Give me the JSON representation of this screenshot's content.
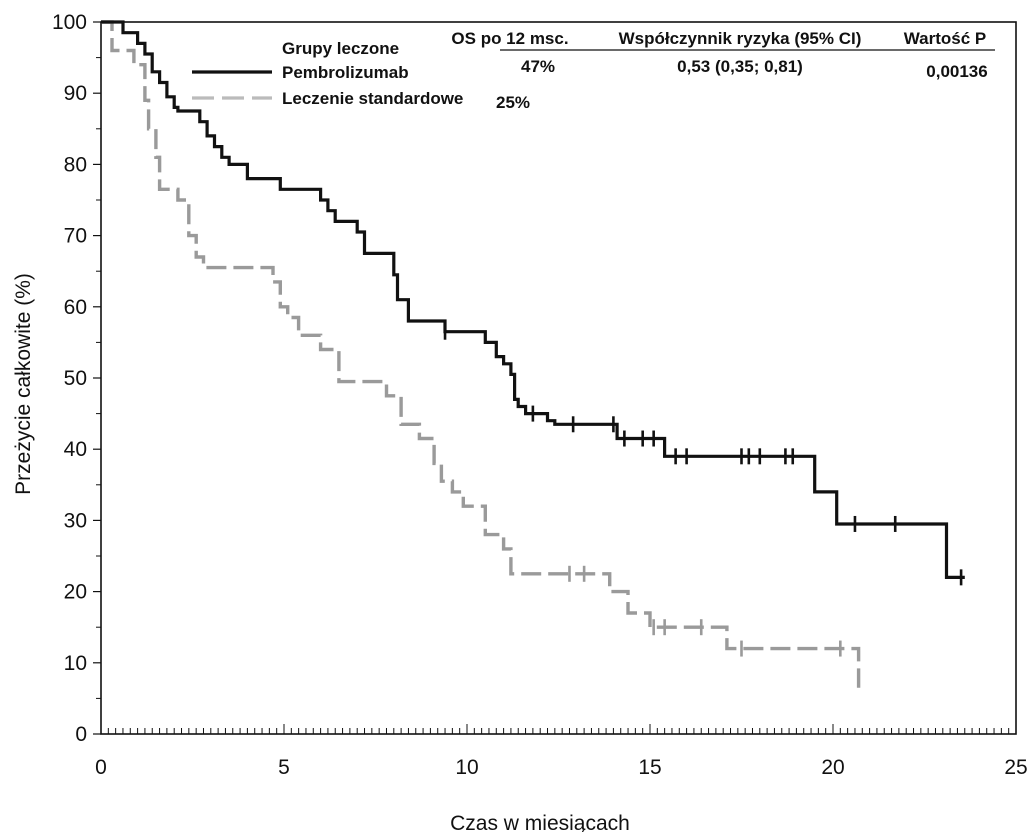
{
  "chart_data": {
    "type": "line",
    "chart_kind": "Kaplan-Meier step curve",
    "xlabel": "Czas w miesiącach",
    "ylabel": "Przeżycie całkowite (%)",
    "xlim": [
      0,
      25
    ],
    "ylim": [
      0,
      100
    ],
    "x_ticks": [
      "0",
      "5",
      "10",
      "15",
      "20",
      "25"
    ],
    "y_ticks": [
      "0",
      "10",
      "20",
      "30",
      "40",
      "50",
      "60",
      "70",
      "80",
      "90",
      "100"
    ],
    "grid": false,
    "legend": {
      "title": "Grupy leczone",
      "placement": "top-left",
      "entries": [
        "Pembrolizumab",
        "Leczenie standardowe"
      ]
    },
    "table": {
      "headers": [
        "OS po 12 msc.",
        "Współczynnik ryzyka (95% CI)",
        "Wartość P"
      ],
      "rows": [
        [
          "47%",
          "0,53 (0,35; 0,81)",
          "0,00136"
        ],
        [
          "25%",
          "",
          ""
        ]
      ]
    },
    "series": [
      {
        "name": "Pembrolizumab",
        "color": "#111111",
        "style": "solid",
        "points": [
          [
            0,
            100
          ],
          [
            0.6,
            100
          ],
          [
            0.6,
            98.5
          ],
          [
            1.0,
            98.5
          ],
          [
            1.0,
            97
          ],
          [
            1.2,
            97
          ],
          [
            1.2,
            95.5
          ],
          [
            1.4,
            95.5
          ],
          [
            1.4,
            93
          ],
          [
            1.6,
            93
          ],
          [
            1.6,
            91.5
          ],
          [
            1.8,
            91.5
          ],
          [
            1.8,
            89.5
          ],
          [
            2.0,
            89.5
          ],
          [
            2.0,
            88
          ],
          [
            2.1,
            88
          ],
          [
            2.1,
            87.5
          ],
          [
            2.7,
            87.5
          ],
          [
            2.7,
            86
          ],
          [
            2.9,
            86
          ],
          [
            2.9,
            84
          ],
          [
            3.1,
            84
          ],
          [
            3.1,
            82.5
          ],
          [
            3.3,
            82.5
          ],
          [
            3.3,
            81
          ],
          [
            3.5,
            81
          ],
          [
            3.5,
            80
          ],
          [
            4.0,
            80
          ],
          [
            4.0,
            78
          ],
          [
            4.9,
            78
          ],
          [
            4.9,
            76.5
          ],
          [
            6.0,
            76.5
          ],
          [
            6.0,
            75
          ],
          [
            6.2,
            75
          ],
          [
            6.2,
            73.5
          ],
          [
            6.4,
            73.5
          ],
          [
            6.4,
            72
          ],
          [
            7.0,
            72
          ],
          [
            7.0,
            70.5
          ],
          [
            7.2,
            70.5
          ],
          [
            7.2,
            67.5
          ],
          [
            8.0,
            67.5
          ],
          [
            8.0,
            64.5
          ],
          [
            8.1,
            64.5
          ],
          [
            8.1,
            61
          ],
          [
            8.4,
            61
          ],
          [
            8.4,
            58
          ],
          [
            9.4,
            58
          ],
          [
            9.4,
            56.5
          ],
          [
            10.5,
            56.5
          ],
          [
            10.5,
            55
          ],
          [
            10.8,
            55
          ],
          [
            10.8,
            53
          ],
          [
            11.0,
            53
          ],
          [
            11.0,
            52
          ],
          [
            11.2,
            52
          ],
          [
            11.2,
            50.5
          ],
          [
            11.3,
            50.5
          ],
          [
            11.3,
            47
          ],
          [
            11.4,
            47
          ],
          [
            11.4,
            46
          ],
          [
            11.6,
            46
          ],
          [
            11.6,
            45
          ],
          [
            12.2,
            45
          ],
          [
            12.2,
            44
          ],
          [
            12.4,
            44
          ],
          [
            12.4,
            43.5
          ],
          [
            14.1,
            43.5
          ],
          [
            14.1,
            41.5
          ],
          [
            15.4,
            41.5
          ],
          [
            15.4,
            39
          ],
          [
            19.5,
            39
          ],
          [
            19.5,
            34
          ],
          [
            20.1,
            34
          ],
          [
            20.1,
            29.5
          ],
          [
            23.1,
            29.5
          ],
          [
            23.1,
            22
          ],
          [
            23.6,
            22
          ]
        ],
        "censor_x": [
          9.4,
          11.8,
          12.9,
          14.0,
          14.3,
          14.8,
          15.1,
          15.7,
          16.0,
          17.5,
          17.7,
          18.0,
          18.7,
          18.9,
          20.6,
          21.7,
          23.5
        ]
      },
      {
        "name": "Leczenie standardowe",
        "color": "#999999",
        "style": "dashed",
        "points": [
          [
            0,
            100
          ],
          [
            0.3,
            100
          ],
          [
            0.3,
            96
          ],
          [
            0.9,
            96
          ],
          [
            0.9,
            94
          ],
          [
            1.2,
            94
          ],
          [
            1.2,
            89
          ],
          [
            1.3,
            89
          ],
          [
            1.3,
            85
          ],
          [
            1.5,
            85
          ],
          [
            1.5,
            81
          ],
          [
            1.6,
            81
          ],
          [
            1.6,
            76.5
          ],
          [
            2.1,
            76.5
          ],
          [
            2.1,
            75
          ],
          [
            2.4,
            75
          ],
          [
            2.4,
            70
          ],
          [
            2.6,
            70
          ],
          [
            2.6,
            67
          ],
          [
            2.8,
            67
          ],
          [
            2.8,
            65.5
          ],
          [
            4.7,
            65.5
          ],
          [
            4.7,
            63.5
          ],
          [
            4.9,
            63.5
          ],
          [
            4.9,
            60
          ],
          [
            5.1,
            60
          ],
          [
            5.1,
            58.5
          ],
          [
            5.4,
            58.5
          ],
          [
            5.4,
            56
          ],
          [
            6.0,
            56
          ],
          [
            6.0,
            54
          ],
          [
            6.5,
            54
          ],
          [
            6.5,
            49.5
          ],
          [
            7.8,
            49.5
          ],
          [
            7.8,
            47.5
          ],
          [
            8.2,
            47.5
          ],
          [
            8.2,
            43.5
          ],
          [
            8.7,
            43.5
          ],
          [
            8.7,
            41.5
          ],
          [
            9.1,
            41.5
          ],
          [
            9.1,
            38
          ],
          [
            9.3,
            38
          ],
          [
            9.3,
            35.5
          ],
          [
            9.6,
            35.5
          ],
          [
            9.6,
            34
          ],
          [
            9.9,
            34
          ],
          [
            9.9,
            32
          ],
          [
            10.5,
            32
          ],
          [
            10.5,
            28
          ],
          [
            11.0,
            28
          ],
          [
            11.0,
            26
          ],
          [
            11.2,
            26
          ],
          [
            11.2,
            22.5
          ],
          [
            13.9,
            22.5
          ],
          [
            13.9,
            20
          ],
          [
            14.4,
            20
          ],
          [
            14.4,
            17
          ],
          [
            15.0,
            17
          ],
          [
            15.0,
            15
          ],
          [
            17.1,
            15
          ],
          [
            17.1,
            12
          ],
          [
            20.7,
            12
          ],
          [
            20.7,
            6.5
          ]
        ],
        "censor_x": [
          12.8,
          13.2,
          15.1,
          15.4,
          16.4,
          17.5,
          20.2
        ]
      }
    ]
  }
}
